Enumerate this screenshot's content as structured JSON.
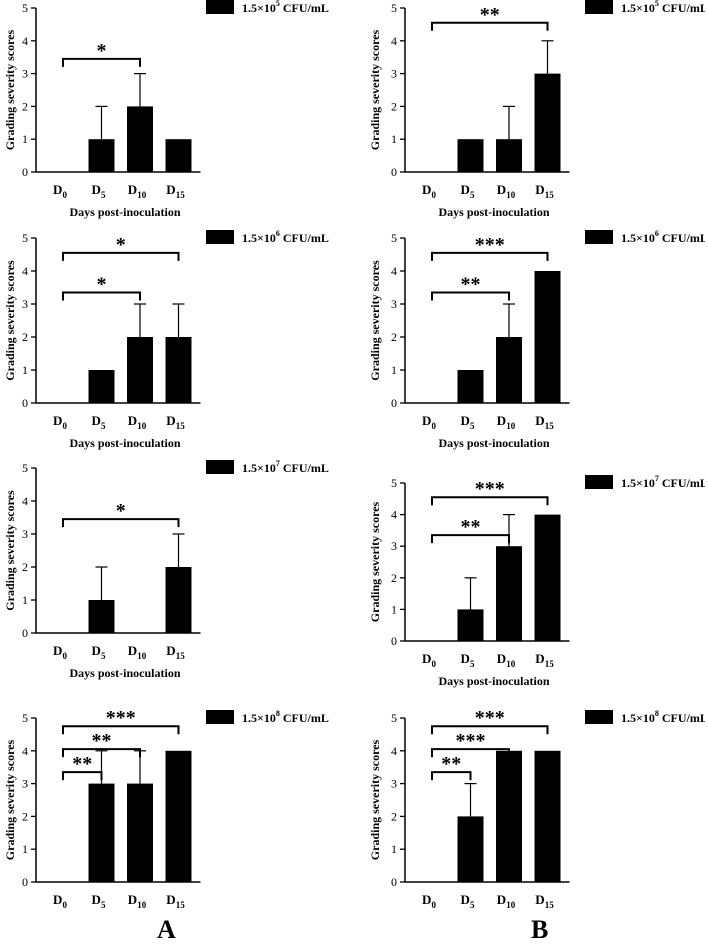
{
  "x_axis_title": "Days post-inoculation",
  "y_axis_title": "Grading severity scores",
  "panel_labels": {
    "a": "A",
    "b": "B"
  },
  "chart_data": [
    {
      "type": "bar",
      "legend": "1.5×10^5 CFU/mL",
      "categories": [
        {
          "base": "D",
          "sub": "0"
        },
        {
          "base": "D",
          "sub": "5"
        },
        {
          "base": "D",
          "sub": "10"
        },
        {
          "base": "D",
          "sub": "15"
        }
      ],
      "values": [
        0,
        1,
        2,
        1
      ],
      "errors": [
        0,
        1,
        1,
        0
      ],
      "significance": [
        {
          "from": 0,
          "to": 2,
          "label": "*"
        }
      ],
      "ylim": [
        0,
        5
      ],
      "yticks": [
        0,
        1,
        2,
        3,
        4,
        5
      ]
    },
    {
      "type": "bar",
      "legend": "1.5×10^5 CFU/mL",
      "categories": [
        {
          "base": "D",
          "sub": "0"
        },
        {
          "base": "D",
          "sub": "5"
        },
        {
          "base": "D",
          "sub": "10"
        },
        {
          "base": "D",
          "sub": "15"
        }
      ],
      "values": [
        0,
        1,
        1,
        3
      ],
      "errors": [
        0,
        0,
        1,
        1
      ],
      "significance": [
        {
          "from": 0,
          "to": 3,
          "label": "**"
        }
      ],
      "ylim": [
        0,
        5
      ],
      "yticks": [
        0,
        1,
        2,
        3,
        4,
        5
      ]
    },
    {
      "type": "bar",
      "legend": "1.5×10^6 CFU/mL",
      "categories": [
        {
          "base": "D",
          "sub": "0"
        },
        {
          "base": "D",
          "sub": "5"
        },
        {
          "base": "D",
          "sub": "10"
        },
        {
          "base": "D",
          "sub": "15"
        }
      ],
      "values": [
        0,
        1,
        2,
        2
      ],
      "errors": [
        0,
        0,
        1,
        1
      ],
      "significance": [
        {
          "from": 0,
          "to": 2,
          "label": "*"
        },
        {
          "from": 0,
          "to": 3,
          "label": "*"
        }
      ],
      "ylim": [
        0,
        5
      ],
      "yticks": [
        0,
        1,
        2,
        3,
        4,
        5
      ]
    },
    {
      "type": "bar",
      "legend": "1.5×10^6 CFU/mL",
      "categories": [
        {
          "base": "D",
          "sub": "0"
        },
        {
          "base": "D",
          "sub": "5"
        },
        {
          "base": "D",
          "sub": "10"
        },
        {
          "base": "D",
          "sub": "15"
        }
      ],
      "values": [
        0,
        1,
        2,
        4
      ],
      "errors": [
        0,
        0,
        1,
        0
      ],
      "significance": [
        {
          "from": 0,
          "to": 2,
          "label": "**"
        },
        {
          "from": 0,
          "to": 3,
          "label": "***"
        }
      ],
      "ylim": [
        0,
        5
      ],
      "yticks": [
        0,
        1,
        2,
        3,
        4,
        5
      ]
    },
    {
      "type": "bar",
      "legend": "1.5×10^7 CFU/mL",
      "categories": [
        {
          "base": "D",
          "sub": "0"
        },
        {
          "base": "D",
          "sub": "5"
        },
        {
          "base": "D",
          "sub": "10"
        },
        {
          "base": "D",
          "sub": "15"
        }
      ],
      "values": [
        0,
        1,
        0,
        2
      ],
      "errors": [
        0,
        1,
        0,
        1
      ],
      "significance": [
        {
          "from": 0,
          "to": 3,
          "label": "*"
        }
      ],
      "ylim": [
        0,
        5
      ],
      "yticks": [
        0,
        1,
        2,
        3,
        4,
        5
      ]
    },
    {
      "type": "bar",
      "legend": "1.5×10^7 CFU/mL",
      "categories": [
        {
          "base": "D",
          "sub": "0"
        },
        {
          "base": "D",
          "sub": "5"
        },
        {
          "base": "D",
          "sub": "10"
        },
        {
          "base": "D",
          "sub": "15"
        }
      ],
      "values": [
        0,
        1,
        3,
        4
      ],
      "errors": [
        0,
        1,
        1,
        0
      ],
      "significance": [
        {
          "from": 0,
          "to": 2,
          "label": "**"
        },
        {
          "from": 0,
          "to": 3,
          "label": "***"
        }
      ],
      "ylim": [
        0,
        5
      ],
      "yticks": [
        0,
        1,
        2,
        3,
        4,
        5
      ]
    },
    {
      "type": "bar",
      "legend": "1.5×10^8 CFU/mL",
      "categories": [
        {
          "base": "D",
          "sub": "0"
        },
        {
          "base": "D",
          "sub": "5"
        },
        {
          "base": "D",
          "sub": "10"
        },
        {
          "base": "D",
          "sub": "15"
        }
      ],
      "values": [
        0,
        3,
        3,
        4
      ],
      "errors": [
        0,
        1,
        1,
        0
      ],
      "significance": [
        {
          "from": 0,
          "to": 1,
          "label": "**"
        },
        {
          "from": 0,
          "to": 2,
          "label": "**"
        },
        {
          "from": 0,
          "to": 3,
          "label": "***"
        }
      ],
      "ylim": [
        0,
        5
      ],
      "yticks": [
        0,
        1,
        2,
        3,
        4,
        5
      ]
    },
    {
      "type": "bar",
      "legend": "1.5×10^8 CFU/mL",
      "categories": [
        {
          "base": "D",
          "sub": "0"
        },
        {
          "base": "D",
          "sub": "5"
        },
        {
          "base": "D",
          "sub": "10"
        },
        {
          "base": "D",
          "sub": "15"
        }
      ],
      "values": [
        0,
        2,
        4,
        4
      ],
      "errors": [
        0,
        1,
        0,
        0
      ],
      "significance": [
        {
          "from": 0,
          "to": 1,
          "label": "**"
        },
        {
          "from": 0,
          "to": 2,
          "label": "***"
        },
        {
          "from": 0,
          "to": 3,
          "label": "***"
        }
      ],
      "ylim": [
        0,
        5
      ],
      "yticks": [
        0,
        1,
        2,
        3,
        4,
        5
      ]
    }
  ]
}
